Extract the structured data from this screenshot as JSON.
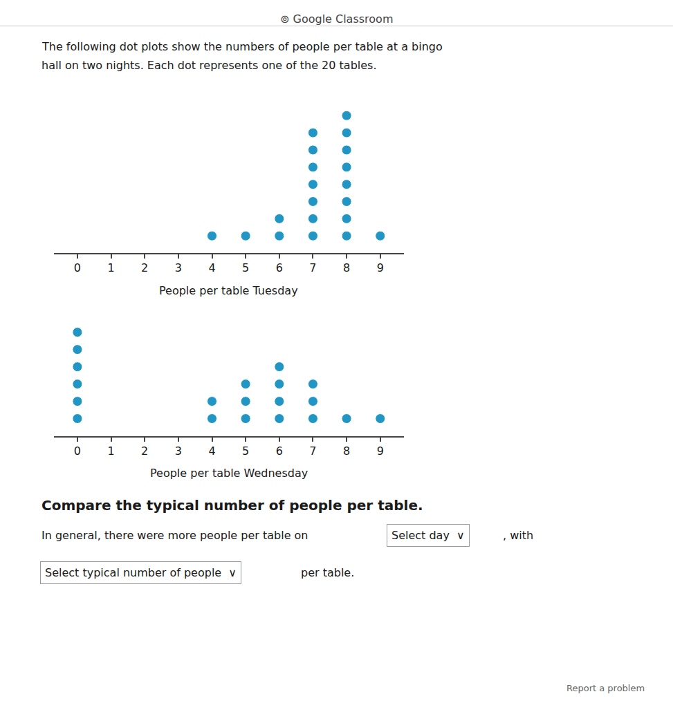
{
  "chart_data": [
    {
      "type": "dot",
      "title": "People per table Tuesday",
      "x": [
        4,
        5,
        6,
        7,
        8,
        9
      ],
      "values": [
        1,
        1,
        2,
        7,
        8,
        1
      ],
      "color": "#2196c4",
      "marker": "circle",
      "xlim": [
        -0.7,
        9.7
      ],
      "xticks": [
        0,
        1,
        2,
        3,
        4,
        5,
        6,
        7,
        8,
        9
      ],
      "ylim": [
        0,
        9
      ],
      "tick_labels": "x",
      "grid": false,
      "annotations": [
        "⊚ Google Classroom",
        "The following dot plots show the numbers of people per table at a bingo",
        "hall on two nights. Each dot represents one of the 20 tables.",
        "Compare the typical number of people per table.",
        "In general, there were more people per table on",
        "Select day  ∨",
        ", with",
        "Select typical number of people  ∨",
        "per table.",
        "Report a problem"
      ]
    },
    {
      "type": "dot",
      "title": "People per table Wednesday",
      "x": [
        0,
        4,
        5,
        6,
        7,
        8,
        9
      ],
      "values": [
        6,
        2,
        3,
        4,
        3,
        1,
        1
      ],
      "color": "#2196c4",
      "marker": "circle",
      "xlim": [
        -0.7,
        9.7
      ],
      "xticks": [
        0,
        1,
        2,
        3,
        4,
        5,
        6,
        7,
        8,
        9
      ],
      "ylim": [
        0,
        7
      ],
      "tick_labels": "x",
      "grid": false
    }
  ]
}
